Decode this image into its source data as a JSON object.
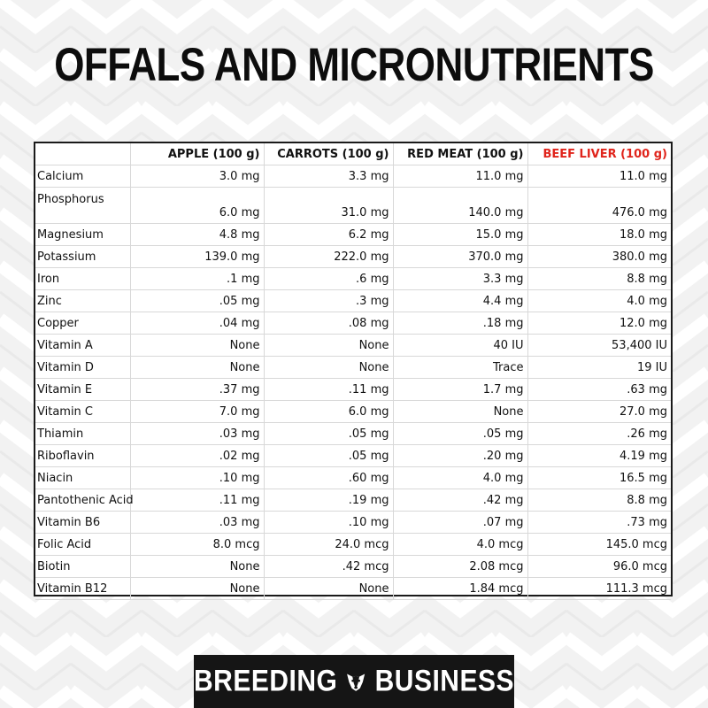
{
  "title": "OFFALS AND MICRONUTRIENTS",
  "table": {
    "headers": [
      "",
      "APPLE (100 g)",
      "CARROTS (100 g)",
      "RED MEAT (100 g)",
      "BEEF LIVER (100 g)"
    ],
    "highlight_color": "#e0241b",
    "rows": [
      [
        "Calcium",
        "3.0 mg",
        "3.3 mg",
        "11.0 mg",
        "11.0 mg"
      ],
      [
        "Phosphorus",
        "6.0 mg",
        "31.0 mg",
        "140.0 mg",
        "476.0 mg"
      ],
      [
        "Magnesium",
        "4.8 mg",
        "6.2 mg",
        "15.0 mg",
        "18.0 mg"
      ],
      [
        "Potassium",
        "139.0 mg",
        "222.0 mg",
        "370.0 mg",
        "380.0 mg"
      ],
      [
        "Iron",
        ".1 mg",
        ".6 mg",
        "3.3 mg",
        "8.8 mg"
      ],
      [
        "Zinc",
        ".05 mg",
        ".3 mg",
        "4.4 mg",
        "4.0 mg"
      ],
      [
        "Copper",
        ".04 mg",
        ".08 mg",
        ".18 mg",
        "12.0 mg"
      ],
      [
        "Vitamin A",
        "None",
        "None",
        "40 IU",
        "53,400 IU"
      ],
      [
        "Vitamin D",
        "None",
        "None",
        "Trace",
        "19 IU"
      ],
      [
        "Vitamin E",
        ".37 mg",
        ".11 mg",
        "1.7 mg",
        ".63 mg"
      ],
      [
        "Vitamin C",
        "7.0 mg",
        "6.0 mg",
        "None",
        "27.0 mg"
      ],
      [
        "Thiamin",
        ".03 mg",
        ".05 mg",
        ".05 mg",
        ".26 mg"
      ],
      [
        "Riboflavin",
        ".02 mg",
        ".05 mg",
        ".20 mg",
        "4.19 mg"
      ],
      [
        "Niacin",
        ".10 mg",
        ".60 mg",
        "4.0 mg",
        "16.5 mg"
      ],
      [
        "Pantothenic Acid",
        ".11 mg",
        ".19 mg",
        ".42 mg",
        "8.8 mg"
      ],
      [
        "Vitamin B6",
        ".03 mg",
        ".10 mg",
        ".07 mg",
        ".73 mg"
      ],
      [
        "Folic Acid",
        "8.0 mcg",
        "24.0 mcg",
        "4.0 mcg",
        "145.0 mcg"
      ],
      [
        "Biotin",
        "None",
        ".42 mcg",
        "2.08 mcg",
        "96.0 mcg"
      ],
      [
        "Vitamin B12",
        "None",
        "None",
        "1.84 mcg",
        "111.3 mcg"
      ]
    ]
  },
  "brand": {
    "word1": "BREEDING",
    "word2": "BUSINESS",
    "icon": "dog-head-icon"
  }
}
